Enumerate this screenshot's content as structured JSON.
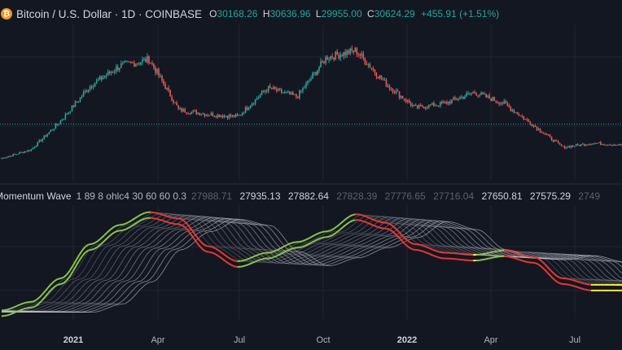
{
  "header": {
    "coin_icon": "bitcoin-icon",
    "symbol": "Bitcoin / U.S. Dollar · 1D · COINBASE",
    "open_key": "O",
    "open": "30168.26",
    "high_key": "H",
    "high": "30636.96",
    "low_key": "L",
    "low": "29955.00",
    "close_key": "C",
    "close": "30624.29",
    "change": "+455.91 (+1.51%)"
  },
  "indicator": {
    "name": "Momentum Wave",
    "params": "1 89 8 ohlc4 30 60 60 0.3",
    "values_faded": [
      "27988.71"
    ],
    "values": [
      "27935.13",
      "27882.64",
      "27828.39",
      "27776.65",
      "27716.04",
      "27650.81",
      "27575.29",
      "2749"
    ]
  },
  "x_axis": {
    "labels": [
      {
        "text": "2021",
        "bold": true
      },
      {
        "text": "Apr",
        "bold": false
      },
      {
        "text": "Jul",
        "bold": false
      },
      {
        "text": "Oct",
        "bold": false
      },
      {
        "text": "2022",
        "bold": true
      },
      {
        "text": "Apr",
        "bold": false
      },
      {
        "text": "Jul",
        "bold": false
      }
    ]
  },
  "colors": {
    "background": "#131722",
    "up": "#26a69a",
    "down": "#ef5350",
    "wave_green": "#8bc34a",
    "wave_red": "#e53935",
    "wave_yellow": "#ffeb3b",
    "wave_ribbon": "#c7c9cf",
    "grid": "#232632",
    "last_price_line": "#26a69a"
  },
  "chart_data": [
    {
      "type": "line",
      "title": "Bitcoin / U.S. Dollar · 1D · COINBASE",
      "note_type": "candlestick",
      "x": [
        "2020-11",
        "2020-12",
        "2021-01",
        "2021-02",
        "2021-03",
        "2021-04",
        "2021-05",
        "2021-06",
        "2021-07",
        "2021-08",
        "2021-09",
        "2021-10",
        "2021-11",
        "2021-12",
        "2022-01",
        "2022-02",
        "2022-03",
        "2022-04",
        "2022-05",
        "2022-06",
        "2022-07",
        "2022-08"
      ],
      "series": [
        {
          "values": [
            15000,
            19000,
            32000,
            48000,
            57000,
            60000,
            37000,
            35000,
            34000,
            47000,
            43000,
            61000,
            64000,
            49000,
            38000,
            40000,
            45000,
            40000,
            30000,
            20000,
            22000,
            21000
          ]
        }
      ],
      "last_price": 30624.29
    },
    {
      "type": "line",
      "title": "Momentum Wave",
      "x": [
        "2020-11",
        "2020-12",
        "2021-01",
        "2021-02",
        "2021-03",
        "2021-04",
        "2021-05",
        "2021-06",
        "2021-07",
        "2021-08",
        "2021-09",
        "2021-10",
        "2021-11",
        "2021-12",
        "2022-01",
        "2022-02",
        "2022-03",
        "2022-04",
        "2022-05",
        "2022-06",
        "2022-07",
        "2022-08"
      ],
      "series": [
        {
          "values": [
            15000,
            19000,
            30000,
            46000,
            55000,
            61000,
            58000,
            45000,
            38000,
            42000,
            47000,
            52000,
            60000,
            56000,
            46000,
            42000,
            41000,
            43000,
            40000,
            30000,
            27000,
            27000
          ]
        }
      ]
    }
  ]
}
